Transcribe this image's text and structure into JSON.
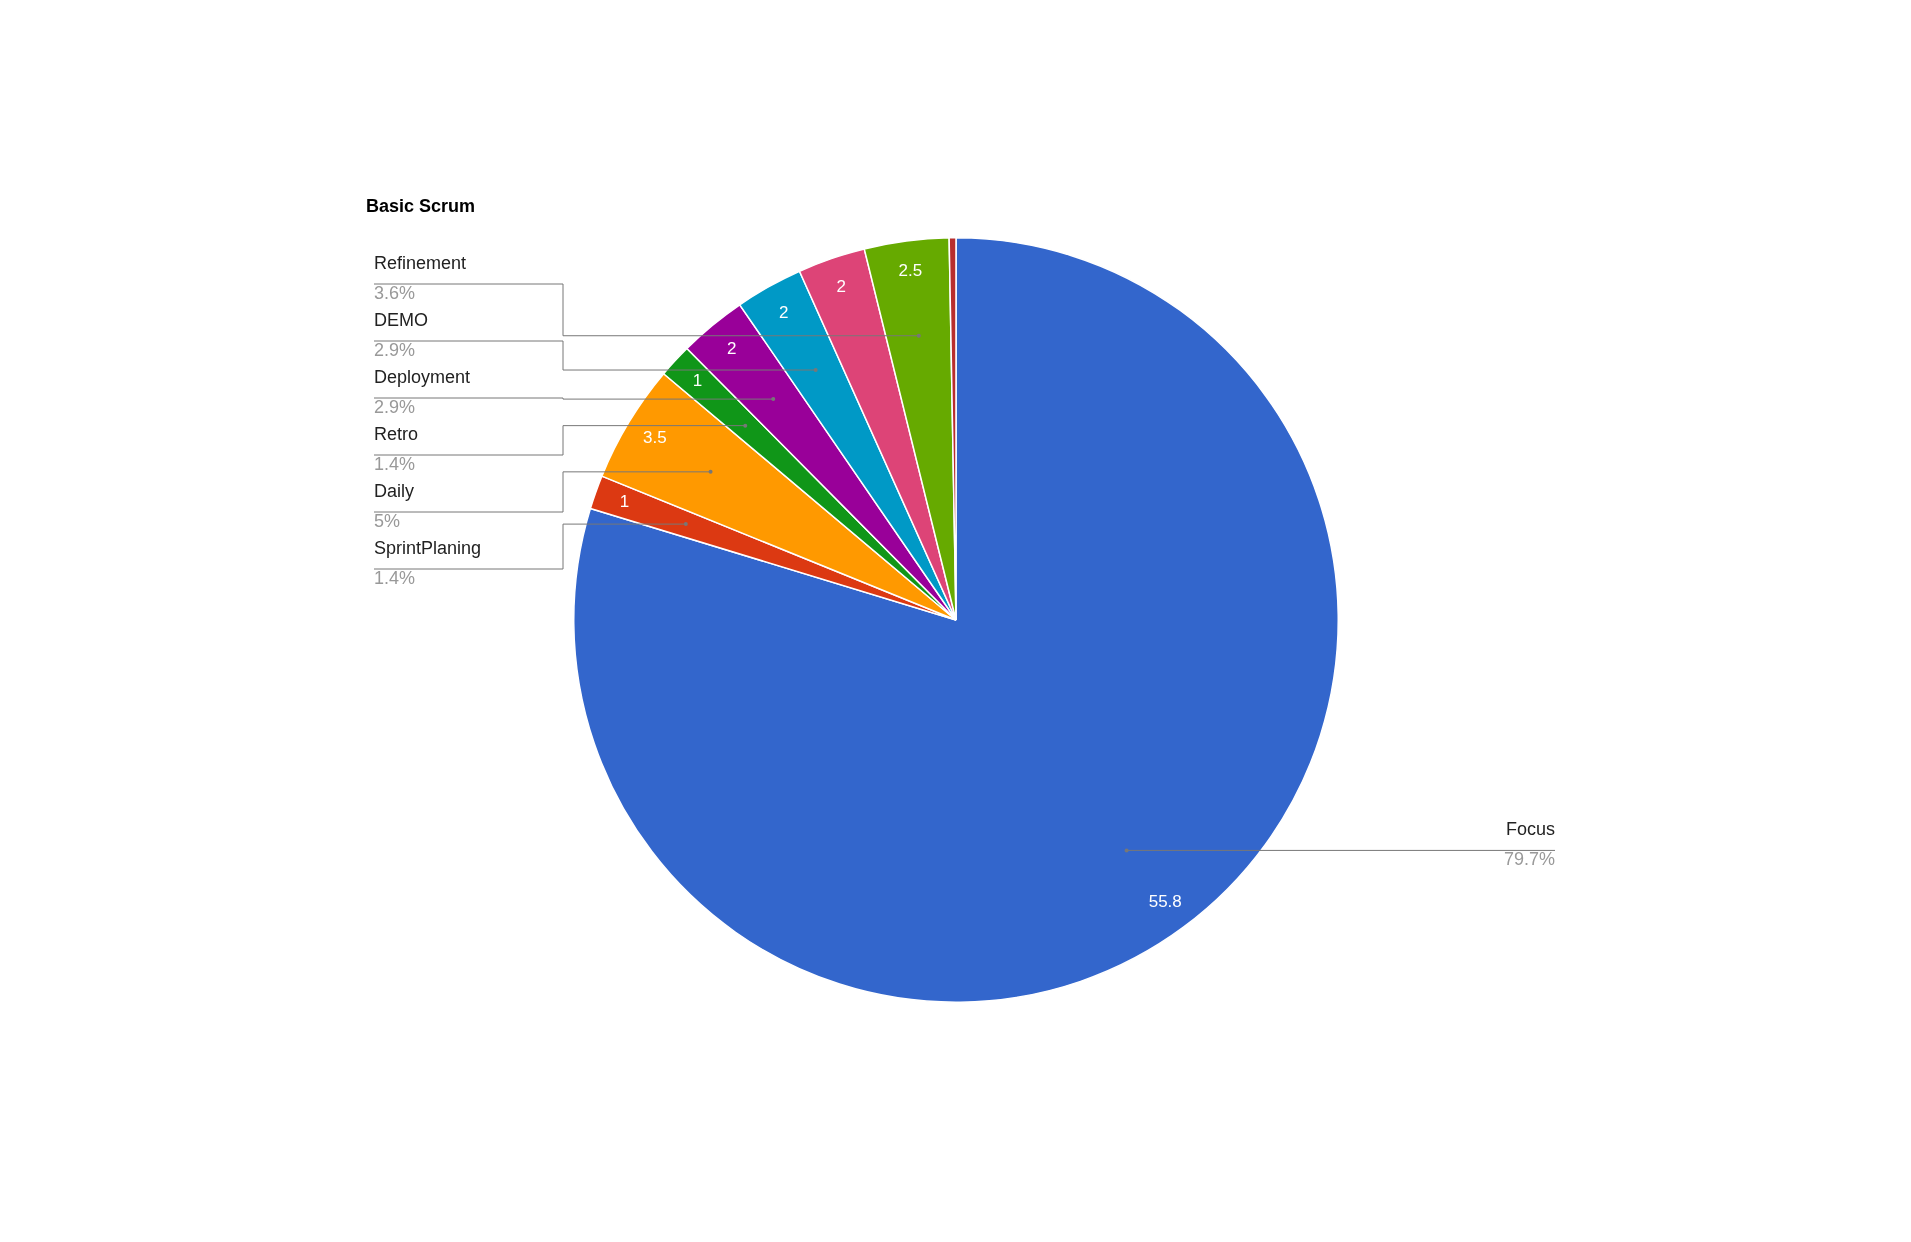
{
  "chart_data": {
    "type": "pie",
    "title": "Basic Scrum",
    "categories": [
      "Focus",
      "SprintPlaning",
      "Daily",
      "Retro",
      "Deployment",
      "DEMO",
      null,
      "Refinement",
      null
    ],
    "values": [
      55.8,
      1,
      3.5,
      1,
      2,
      2,
      2,
      2.5,
      0.2
    ],
    "colors": [
      "#3366cc",
      "#dc3912",
      "#ff9900",
      "#109618",
      "#990099",
      "#0099c6",
      "#dd4477",
      "#66aa00",
      "#b82e2e"
    ],
    "value_labels": [
      "55.8",
      "1",
      "3.5",
      "1",
      "2",
      "2",
      "2",
      "2.5",
      null
    ],
    "annotations": [
      "79.7%",
      "1.4%",
      "5%",
      "1.4%",
      "2.9%",
      "2.9%",
      "3.6%"
    ]
  }
}
